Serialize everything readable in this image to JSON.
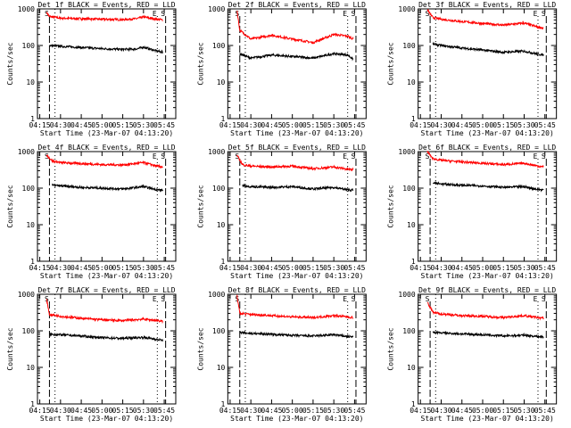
{
  "figure": {
    "ylabel": "Counts/sec",
    "xlabel": "Start Time (23-Mar-07 04:13:20)",
    "colors": {
      "events": "#000000",
      "lld": "#ff0000",
      "axes": "#000000",
      "background": "#ffffff"
    }
  },
  "chart_data": [
    {
      "type": "line",
      "title": "Det 1f BLACK = Events, RED = LLD",
      "x_ticks": [
        "04:15",
        "04:30",
        "04:45",
        "05:00",
        "05:15",
        "05:30",
        "05:45"
      ],
      "y_ticks": [
        "1",
        "10",
        "100",
        "1000"
      ],
      "ylim": [
        1,
        1000
      ],
      "yscale": "log",
      "markers": [
        "S",
        "E",
        "S"
      ],
      "series": [
        {
          "name": "LLD",
          "color": "#ff0000",
          "values": [
            {
              "t": "04:20",
              "v": 800
            },
            {
              "t": "04:22",
              "v": 620
            },
            {
              "t": "04:30",
              "v": 560
            },
            {
              "t": "04:45",
              "v": 540
            },
            {
              "t": "05:00",
              "v": 520
            },
            {
              "t": "05:15",
              "v": 510
            },
            {
              "t": "05:25",
              "v": 540
            },
            {
              "t": "05:30",
              "v": 600
            },
            {
              "t": "05:40",
              "v": 520
            },
            {
              "t": "05:44",
              "v": 500
            }
          ]
        },
        {
          "name": "Events",
          "color": "#000000",
          "values": [
            {
              "t": "04:22",
              "v": 100
            },
            {
              "t": "04:30",
              "v": 95
            },
            {
              "t": "04:45",
              "v": 88
            },
            {
              "t": "05:00",
              "v": 82
            },
            {
              "t": "05:15",
              "v": 78
            },
            {
              "t": "05:25",
              "v": 80
            },
            {
              "t": "05:30",
              "v": 90
            },
            {
              "t": "05:40",
              "v": 70
            },
            {
              "t": "05:44",
              "v": 65
            }
          ]
        }
      ]
    },
    {
      "type": "line",
      "title": "Det 2f BLACK = Events, RED = LLD",
      "x_ticks": [
        "04:15",
        "04:30",
        "04:45",
        "05:00",
        "05:15",
        "05:30",
        "05:45"
      ],
      "y_ticks": [
        "1",
        "10",
        "100",
        "1000"
      ],
      "ylim": [
        1,
        1000
      ],
      "yscale": "log",
      "markers": [
        "S",
        "E",
        "S"
      ],
      "series": [
        {
          "name": "LLD",
          "color": "#ff0000",
          "values": [
            {
              "t": "04:20",
              "v": 900
            },
            {
              "t": "04:22",
              "v": 260
            },
            {
              "t": "04:30",
              "v": 150
            },
            {
              "t": "04:45",
              "v": 190
            },
            {
              "t": "05:00",
              "v": 150
            },
            {
              "t": "05:15",
              "v": 120
            },
            {
              "t": "05:30",
              "v": 200
            },
            {
              "t": "05:40",
              "v": 180
            },
            {
              "t": "05:44",
              "v": 150
            }
          ]
        },
        {
          "name": "Events",
          "color": "#000000",
          "values": [
            {
              "t": "04:22",
              "v": 60
            },
            {
              "t": "04:30",
              "v": 45
            },
            {
              "t": "04:45",
              "v": 55
            },
            {
              "t": "05:00",
              "v": 50
            },
            {
              "t": "05:15",
              "v": 45
            },
            {
              "t": "05:30",
              "v": 60
            },
            {
              "t": "05:40",
              "v": 55
            },
            {
              "t": "05:44",
              "v": 42
            }
          ]
        }
      ]
    },
    {
      "type": "line",
      "title": "Det 3f BLACK = Events, RED = LLD",
      "x_ticks": [
        "04:15",
        "04:30",
        "04:45",
        "05:00",
        "05:15",
        "05:30",
        "05:45"
      ],
      "y_ticks": [
        "1",
        "10",
        "100",
        "1000"
      ],
      "ylim": [
        1,
        1000
      ],
      "yscale": "log",
      "markers": [
        "S",
        "E",
        "S"
      ],
      "series": [
        {
          "name": "LLD",
          "color": "#ff0000",
          "values": [
            {
              "t": "04:20",
              "v": 950
            },
            {
              "t": "04:24",
              "v": 580
            },
            {
              "t": "04:30",
              "v": 520
            },
            {
              "t": "04:45",
              "v": 450
            },
            {
              "t": "05:00",
              "v": 400
            },
            {
              "t": "05:15",
              "v": 360
            },
            {
              "t": "05:30",
              "v": 410
            },
            {
              "t": "05:40",
              "v": 320
            },
            {
              "t": "05:44",
              "v": 300
            }
          ]
        },
        {
          "name": "Events",
          "color": "#000000",
          "values": [
            {
              "t": "04:24",
              "v": 110
            },
            {
              "t": "04:30",
              "v": 100
            },
            {
              "t": "04:45",
              "v": 85
            },
            {
              "t": "05:00",
              "v": 75
            },
            {
              "t": "05:15",
              "v": 65
            },
            {
              "t": "05:30",
              "v": 70
            },
            {
              "t": "05:40",
              "v": 58
            },
            {
              "t": "05:44",
              "v": 55
            }
          ]
        }
      ]
    },
    {
      "type": "line",
      "title": "Det 4f BLACK = Events, RED = LLD",
      "x_ticks": [
        "04:15",
        "04:30",
        "04:45",
        "05:00",
        "05:15",
        "05:30",
        "05:45"
      ],
      "y_ticks": [
        "1",
        "10",
        "100",
        "1000"
      ],
      "ylim": [
        1,
        1000
      ],
      "yscale": "log",
      "markers": [
        "S",
        "E",
        "S"
      ],
      "series": [
        {
          "name": "LLD",
          "color": "#ff0000",
          "values": [
            {
              "t": "04:20",
              "v": 800
            },
            {
              "t": "04:24",
              "v": 560
            },
            {
              "t": "04:30",
              "v": 500
            },
            {
              "t": "04:45",
              "v": 470
            },
            {
              "t": "05:00",
              "v": 440
            },
            {
              "t": "05:15",
              "v": 430
            },
            {
              "t": "05:30",
              "v": 500
            },
            {
              "t": "05:40",
              "v": 400
            },
            {
              "t": "05:44",
              "v": 380
            }
          ]
        },
        {
          "name": "Events",
          "color": "#000000",
          "values": [
            {
              "t": "04:24",
              "v": 120
            },
            {
              "t": "04:30",
              "v": 115
            },
            {
              "t": "04:45",
              "v": 105
            },
            {
              "t": "05:00",
              "v": 100
            },
            {
              "t": "05:15",
              "v": 95
            },
            {
              "t": "05:30",
              "v": 110
            },
            {
              "t": "05:40",
              "v": 90
            },
            {
              "t": "05:44",
              "v": 88
            }
          ]
        }
      ]
    },
    {
      "type": "line",
      "title": "Det 5f BLACK = Events, RED = LLD",
      "x_ticks": [
        "04:15",
        "04:30",
        "04:45",
        "05:00",
        "05:15",
        "05:30",
        "05:45"
      ],
      "y_ticks": [
        "1",
        "10",
        "100",
        "1000"
      ],
      "ylim": [
        1,
        1000
      ],
      "yscale": "log",
      "markers": [
        "S",
        "E",
        "S"
      ],
      "series": [
        {
          "name": "LLD",
          "color": "#ff0000",
          "values": [
            {
              "t": "04:20",
              "v": 780
            },
            {
              "t": "04:24",
              "v": 440
            },
            {
              "t": "04:30",
              "v": 400
            },
            {
              "t": "04:45",
              "v": 380
            },
            {
              "t": "05:00",
              "v": 400
            },
            {
              "t": "05:15",
              "v": 340
            },
            {
              "t": "05:30",
              "v": 380
            },
            {
              "t": "05:40",
              "v": 330
            },
            {
              "t": "05:44",
              "v": 320
            }
          ]
        },
        {
          "name": "Events",
          "color": "#000000",
          "values": [
            {
              "t": "04:24",
              "v": 120
            },
            {
              "t": "04:30",
              "v": 110
            },
            {
              "t": "04:45",
              "v": 105
            },
            {
              "t": "05:00",
              "v": 110
            },
            {
              "t": "05:15",
              "v": 95
            },
            {
              "t": "05:30",
              "v": 105
            },
            {
              "t": "05:40",
              "v": 90
            },
            {
              "t": "05:44",
              "v": 88
            }
          ]
        }
      ]
    },
    {
      "type": "line",
      "title": "Det 6f BLACK = Events, RED = LLD",
      "x_ticks": [
        "04:15",
        "04:30",
        "04:45",
        "05:00",
        "05:15",
        "05:30",
        "05:45"
      ],
      "y_ticks": [
        "1",
        "10",
        "100",
        "1000"
      ],
      "ylim": [
        1,
        1000
      ],
      "yscale": "log",
      "markers": [
        "S",
        "E",
        "S"
      ],
      "series": [
        {
          "name": "LLD",
          "color": "#ff0000",
          "values": [
            {
              "t": "04:20",
              "v": 1000
            },
            {
              "t": "04:24",
              "v": 640
            },
            {
              "t": "04:30",
              "v": 580
            },
            {
              "t": "04:45",
              "v": 520
            },
            {
              "t": "05:00",
              "v": 480
            },
            {
              "t": "05:15",
              "v": 440
            },
            {
              "t": "05:30",
              "v": 480
            },
            {
              "t": "05:40",
              "v": 400
            },
            {
              "t": "05:44",
              "v": 380
            }
          ]
        },
        {
          "name": "Events",
          "color": "#000000",
          "values": [
            {
              "t": "04:24",
              "v": 140
            },
            {
              "t": "04:30",
              "v": 130
            },
            {
              "t": "04:45",
              "v": 120
            },
            {
              "t": "05:00",
              "v": 115
            },
            {
              "t": "05:15",
              "v": 105
            },
            {
              "t": "05:30",
              "v": 110
            },
            {
              "t": "05:40",
              "v": 92
            },
            {
              "t": "05:44",
              "v": 90
            }
          ]
        }
      ]
    },
    {
      "type": "line",
      "title": "Det 7f BLACK = Events, RED = LLD",
      "x_ticks": [
        "04:15",
        "04:30",
        "04:45",
        "05:00",
        "05:15",
        "05:30",
        "05:45"
      ],
      "y_ticks": [
        "1",
        "10",
        "100",
        "1000"
      ],
      "ylim": [
        1,
        1000
      ],
      "yscale": "log",
      "markers": [
        "S",
        "E",
        "S"
      ],
      "series": [
        {
          "name": "LLD",
          "color": "#ff0000",
          "values": [
            {
              "t": "04:20",
              "v": 700
            },
            {
              "t": "04:22",
              "v": 280
            },
            {
              "t": "04:30",
              "v": 250
            },
            {
              "t": "04:45",
              "v": 220
            },
            {
              "t": "05:00",
              "v": 200
            },
            {
              "t": "05:15",
              "v": 190
            },
            {
              "t": "05:30",
              "v": 210
            },
            {
              "t": "05:40",
              "v": 190
            },
            {
              "t": "05:44",
              "v": 180
            }
          ]
        },
        {
          "name": "Events",
          "color": "#000000",
          "values": [
            {
              "t": "04:22",
              "v": 80
            },
            {
              "t": "04:30",
              "v": 78
            },
            {
              "t": "04:45",
              "v": 72
            },
            {
              "t": "05:00",
              "v": 65
            },
            {
              "t": "05:15",
              "v": 62
            },
            {
              "t": "05:30",
              "v": 66
            },
            {
              "t": "05:40",
              "v": 58
            },
            {
              "t": "05:44",
              "v": 55
            }
          ]
        }
      ]
    },
    {
      "type": "line",
      "title": "Det 8f BLACK = Events, RED = LLD",
      "x_ticks": [
        "04:15",
        "04:30",
        "04:45",
        "05:00",
        "05:15",
        "05:30",
        "05:45"
      ],
      "y_ticks": [
        "1",
        "10",
        "100",
        "1000"
      ],
      "ylim": [
        1,
        1000
      ],
      "yscale": "log",
      "markers": [
        "S",
        "E",
        "S"
      ],
      "series": [
        {
          "name": "LLD",
          "color": "#ff0000",
          "values": [
            {
              "t": "04:20",
              "v": 900
            },
            {
              "t": "04:22",
              "v": 300
            },
            {
              "t": "04:30",
              "v": 280
            },
            {
              "t": "04:45",
              "v": 260
            },
            {
              "t": "05:00",
              "v": 240
            },
            {
              "t": "05:15",
              "v": 230
            },
            {
              "t": "05:30",
              "v": 260
            },
            {
              "t": "05:40",
              "v": 240
            },
            {
              "t": "05:44",
              "v": 230
            }
          ]
        },
        {
          "name": "Events",
          "color": "#000000",
          "values": [
            {
              "t": "04:22",
              "v": 90
            },
            {
              "t": "04:30",
              "v": 85
            },
            {
              "t": "04:45",
              "v": 80
            },
            {
              "t": "05:00",
              "v": 75
            },
            {
              "t": "05:15",
              "v": 72
            },
            {
              "t": "05:30",
              "v": 78
            },
            {
              "t": "05:40",
              "v": 70
            },
            {
              "t": "05:44",
              "v": 68
            }
          ]
        }
      ]
    },
    {
      "type": "line",
      "title": "Det 9f BLACK = Events, RED = LLD",
      "x_ticks": [
        "04:15",
        "04:30",
        "04:45",
        "05:00",
        "05:15",
        "05:30",
        "05:45"
      ],
      "y_ticks": [
        "1",
        "10",
        "100",
        "1000"
      ],
      "ylim": [
        1,
        1000
      ],
      "yscale": "log",
      "markers": [
        "S",
        "E",
        "S"
      ],
      "series": [
        {
          "name": "LLD",
          "color": "#ff0000",
          "values": [
            {
              "t": "04:20",
              "v": 600
            },
            {
              "t": "04:24",
              "v": 320
            },
            {
              "t": "04:30",
              "v": 290
            },
            {
              "t": "04:45",
              "v": 260
            },
            {
              "t": "05:00",
              "v": 250
            },
            {
              "t": "05:15",
              "v": 230
            },
            {
              "t": "05:30",
              "v": 260
            },
            {
              "t": "05:40",
              "v": 230
            },
            {
              "t": "05:44",
              "v": 220
            }
          ]
        },
        {
          "name": "Events",
          "color": "#000000",
          "values": [
            {
              "t": "04:24",
              "v": 92
            },
            {
              "t": "04:30",
              "v": 88
            },
            {
              "t": "04:45",
              "v": 82
            },
            {
              "t": "05:00",
              "v": 78
            },
            {
              "t": "05:15",
              "v": 72
            },
            {
              "t": "05:30",
              "v": 76
            },
            {
              "t": "05:40",
              "v": 70
            },
            {
              "t": "05:44",
              "v": 68
            }
          ]
        }
      ]
    }
  ]
}
